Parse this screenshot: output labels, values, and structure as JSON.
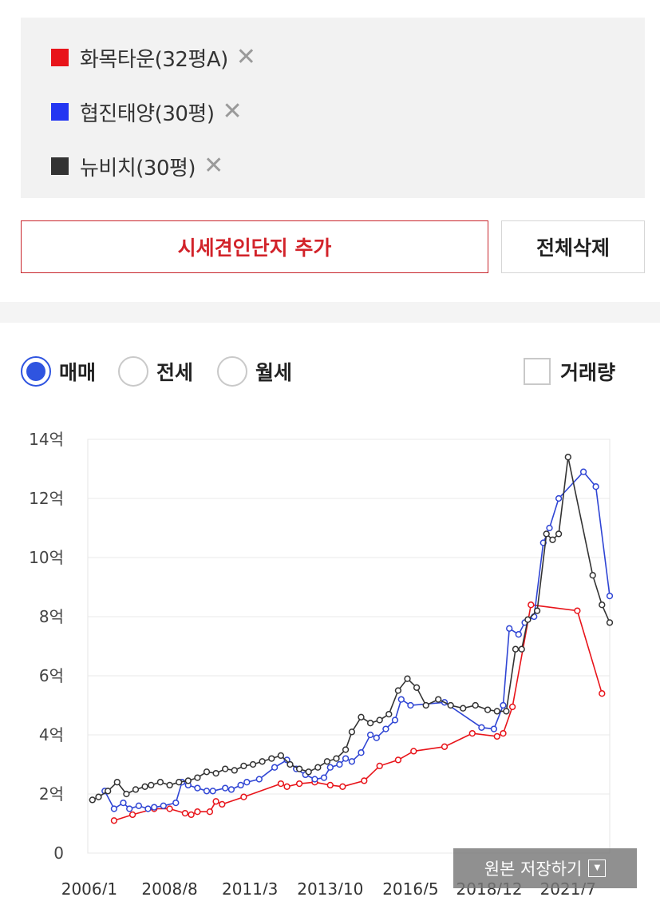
{
  "legend": {
    "items": [
      {
        "label": "화목타운(32평A)",
        "color": "#e8141a"
      },
      {
        "label": "협진태양(30평)",
        "color": "#2336f2"
      },
      {
        "label": "뉴비치(30평)",
        "color": "#333333"
      }
    ],
    "remove_glyph": "✕"
  },
  "actions": {
    "add_label": "시세견인단지 추가",
    "delete_all_label": "전체삭제"
  },
  "filters": {
    "options": [
      {
        "label": "매매",
        "checked": true
      },
      {
        "label": "전세",
        "checked": false
      },
      {
        "label": "월세",
        "checked": false
      }
    ],
    "volume_label": "거래량",
    "volume_checked": false
  },
  "save_button": {
    "label": "원본 저장하기",
    "icon": "chevron-down-icon"
  },
  "chart_data": {
    "type": "line",
    "ylim": [
      0,
      14
    ],
    "y_ticks": [
      {
        "value": 0,
        "label": "0"
      },
      {
        "value": 2,
        "label": "2억"
      },
      {
        "value": 4,
        "label": "4억"
      },
      {
        "value": 6,
        "label": "6억"
      },
      {
        "value": 8,
        "label": "8억"
      },
      {
        "value": 10,
        "label": "10억"
      },
      {
        "value": 12,
        "label": "12억"
      },
      {
        "value": 14,
        "label": "14억"
      }
    ],
    "xlim": [
      2005.95,
      2022.85
    ],
    "x_ticks": [
      {
        "value": 2006.0,
        "label": "2006/1"
      },
      {
        "value": 2008.6,
        "label": "2008/8"
      },
      {
        "value": 2011.2,
        "label": "2011/3"
      },
      {
        "value": 2013.8,
        "label": "2013/10"
      },
      {
        "value": 2016.4,
        "label": "2016/5"
      },
      {
        "value": 2018.95,
        "label": "2018/12"
      },
      {
        "value": 2021.5,
        "label": "2021/7"
      }
    ],
    "grid": true,
    "series": [
      {
        "name": "화목타운(32평A)",
        "color": "#e8141a",
        "x": [
          2006.8,
          2007.4,
          2008.1,
          2008.6,
          2009.1,
          2009.3,
          2009.5,
          2009.9,
          2010.1,
          2010.3,
          2011.0,
          2012.2,
          2012.4,
          2012.8,
          2013.3,
          2013.8,
          2014.2,
          2014.9,
          2015.4,
          2016.0,
          2016.5,
          2017.5,
          2018.4,
          2019.2,
          2019.4,
          2019.7,
          2020.3,
          2021.8,
          2022.6
        ],
        "y": [
          1.1,
          1.3,
          1.5,
          1.5,
          1.35,
          1.3,
          1.4,
          1.4,
          1.75,
          1.65,
          1.9,
          2.35,
          2.25,
          2.35,
          2.4,
          2.3,
          2.25,
          2.45,
          2.95,
          3.15,
          3.45,
          3.6,
          4.05,
          3.95,
          4.05,
          4.95,
          8.4,
          8.2,
          5.4
        ]
      },
      {
        "name": "협진태양(30평)",
        "color": "#2f45d4",
        "x": [
          2006.5,
          2006.8,
          2007.1,
          2007.3,
          2007.6,
          2007.9,
          2008.1,
          2008.4,
          2008.8,
          2009.0,
          2009.2,
          2009.5,
          2009.8,
          2010.0,
          2010.4,
          2010.6,
          2010.9,
          2011.1,
          2011.5,
          2012.0,
          2012.4,
          2012.7,
          2013.0,
          2013.3,
          2013.6,
          2013.8,
          2014.1,
          2014.3,
          2014.5,
          2014.8,
          2015.1,
          2015.3,
          2015.6,
          2015.9,
          2016.1,
          2016.4,
          2017.5,
          2018.7,
          2019.1,
          2019.4,
          2019.6,
          2019.9,
          2020.1,
          2020.4,
          2020.7,
          2020.9,
          2021.2,
          2022.0,
          2022.4,
          2022.85
        ],
        "y": [
          2.1,
          1.5,
          1.7,
          1.5,
          1.6,
          1.5,
          1.55,
          1.6,
          1.7,
          2.4,
          2.3,
          2.2,
          2.1,
          2.1,
          2.2,
          2.15,
          2.3,
          2.4,
          2.5,
          2.9,
          3.15,
          2.85,
          2.65,
          2.5,
          2.55,
          2.9,
          3.0,
          3.2,
          3.1,
          3.4,
          4.0,
          3.9,
          4.2,
          4.5,
          5.2,
          5.0,
          5.1,
          4.25,
          4.2,
          5.0,
          7.6,
          7.4,
          7.8,
          8.0,
          10.5,
          11.0,
          12.0,
          12.9,
          12.4,
          8.7
        ]
      },
      {
        "name": "뉴비치(30평)",
        "color": "#333333",
        "x": [
          2006.1,
          2006.3,
          2006.6,
          2006.9,
          2007.2,
          2007.5,
          2007.8,
          2008.0,
          2008.3,
          2008.6,
          2008.9,
          2009.2,
          2009.5,
          2009.8,
          2010.1,
          2010.4,
          2010.7,
          2011.0,
          2011.3,
          2011.6,
          2011.9,
          2012.2,
          2012.5,
          2012.8,
          2013.1,
          2013.4,
          2013.7,
          2014.0,
          2014.3,
          2014.5,
          2014.8,
          2015.1,
          2015.4,
          2015.7,
          2016.0,
          2016.3,
          2016.6,
          2016.9,
          2017.3,
          2017.7,
          2018.1,
          2018.5,
          2018.9,
          2019.2,
          2019.5,
          2019.8,
          2020.0,
          2020.2,
          2020.5,
          2020.8,
          2021.0,
          2021.2,
          2021.5,
          2022.3,
          2022.6,
          2022.85
        ],
        "y": [
          1.8,
          1.9,
          2.1,
          2.4,
          2.0,
          2.15,
          2.25,
          2.3,
          2.4,
          2.3,
          2.4,
          2.45,
          2.55,
          2.75,
          2.7,
          2.85,
          2.8,
          2.95,
          3.0,
          3.1,
          3.2,
          3.3,
          3.0,
          2.85,
          2.75,
          2.9,
          3.1,
          3.2,
          3.5,
          4.1,
          4.6,
          4.4,
          4.5,
          4.7,
          5.5,
          5.9,
          5.6,
          5.0,
          5.2,
          5.0,
          4.9,
          5.0,
          4.85,
          4.8,
          4.8,
          6.9,
          6.9,
          7.9,
          8.2,
          10.8,
          10.6,
          10.8,
          13.4,
          9.4,
          8.4,
          7.8
        ]
      }
    ]
  }
}
